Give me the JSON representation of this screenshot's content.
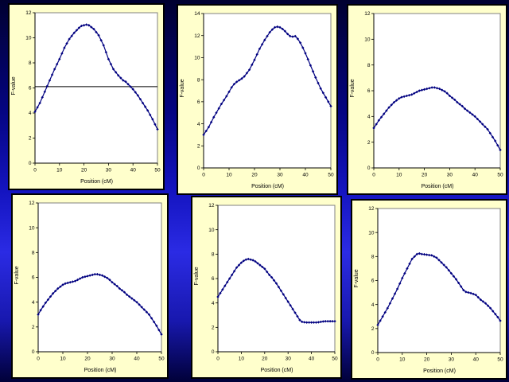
{
  "slide": {
    "type": "presentation-slide",
    "description": "Six line charts of F-value versus map position arranged in a 2x3 grid"
  },
  "colors": {
    "slide_bg_dark": "#000030",
    "slide_bg_bright": "#2b2be4",
    "panel_bg": "#FFFFCC",
    "panel_border": "#000000",
    "plot_bg": "#FFFFFF",
    "plot_frame": "#808080",
    "axis": "#000000",
    "series": "#000080",
    "threshold": "#000000"
  },
  "chart_data": [
    {
      "position": "top-left",
      "type": "line",
      "xlabel": "Position (cM)",
      "ylabel": "F-value",
      "xlim": [
        0,
        50
      ],
      "ylim": [
        0,
        12
      ],
      "xticks": [
        0,
        10,
        20,
        30,
        40,
        50
      ],
      "yticks": [
        0,
        2,
        4,
        6,
        8,
        10,
        12
      ],
      "x_start": 0,
      "x_step": 1,
      "threshold_line": 6.1,
      "marker": "diamond",
      "grid": false,
      "legend": false,
      "y": [
        4.1,
        4.45,
        4.8,
        5.25,
        5.7,
        6.15,
        6.6,
        7.05,
        7.5,
        7.9,
        8.3,
        8.75,
        9.2,
        9.55,
        9.9,
        10.15,
        10.4,
        10.6,
        10.8,
        10.95,
        11.0,
        11.05,
        11.0,
        10.85,
        10.7,
        10.45,
        10.2,
        9.8,
        9.4,
        8.85,
        8.3,
        7.9,
        7.5,
        7.25,
        7.0,
        6.8,
        6.6,
        6.5,
        6.3,
        6.1,
        5.9,
        5.65,
        5.4,
        5.1,
        4.8,
        4.5,
        4.2,
        3.85,
        3.5,
        3.1,
        2.7
      ]
    },
    {
      "position": "top-middle",
      "type": "line",
      "xlabel": "Position (cM)",
      "ylabel": "F-value",
      "xlim": [
        0,
        50
      ],
      "ylim": [
        0,
        14
      ],
      "xticks": [
        0,
        10,
        20,
        30,
        40,
        50
      ],
      "yticks": [
        0,
        2,
        4,
        6,
        8,
        10,
        12,
        14
      ],
      "x_start": 0,
      "x_step": 1,
      "threshold_line": null,
      "marker": "diamond",
      "grid": false,
      "legend": false,
      "y": [
        3.0,
        3.35,
        3.7,
        4.15,
        4.6,
        5.0,
        5.4,
        5.8,
        6.15,
        6.5,
        6.9,
        7.3,
        7.6,
        7.8,
        7.95,
        8.1,
        8.3,
        8.6,
        8.9,
        9.35,
        9.8,
        10.3,
        10.8,
        11.2,
        11.6,
        11.95,
        12.3,
        12.55,
        12.75,
        12.8,
        12.75,
        12.6,
        12.4,
        12.15,
        11.95,
        11.9,
        11.95,
        11.7,
        11.35,
        10.9,
        10.4,
        9.85,
        9.3,
        8.75,
        8.2,
        7.7,
        7.2,
        6.8,
        6.4,
        6.0,
        5.6
      ]
    },
    {
      "position": "top-right",
      "type": "line",
      "xlabel": "Position (cM)",
      "ylabel": "F-value",
      "xlim": [
        0,
        50
      ],
      "ylim": [
        0,
        12
      ],
      "xticks": [
        0,
        10,
        20,
        30,
        40,
        50
      ],
      "yticks": [
        0,
        2,
        4,
        6,
        8,
        10,
        12
      ],
      "x_start": 0,
      "x_step": 1,
      "threshold_line": null,
      "marker": "diamond",
      "grid": false,
      "legend": false,
      "y": [
        3.1,
        3.4,
        3.7,
        3.95,
        4.2,
        4.45,
        4.7,
        4.9,
        5.1,
        5.25,
        5.4,
        5.5,
        5.55,
        5.6,
        5.65,
        5.7,
        5.8,
        5.9,
        6.0,
        6.05,
        6.1,
        6.15,
        6.2,
        6.25,
        6.25,
        6.2,
        6.15,
        6.05,
        5.95,
        5.8,
        5.6,
        5.45,
        5.3,
        5.1,
        4.95,
        4.8,
        4.6,
        4.45,
        4.3,
        4.15,
        4.0,
        3.8,
        3.6,
        3.4,
        3.2,
        3.0,
        2.7,
        2.4,
        2.1,
        1.75,
        1.4
      ]
    },
    {
      "position": "bottom-left",
      "type": "line",
      "xlabel": "Position (cM)",
      "ylabel": "F-value",
      "xlim": [
        0,
        50
      ],
      "ylim": [
        0,
        12
      ],
      "xticks": [
        0,
        10,
        20,
        30,
        40,
        50
      ],
      "yticks": [
        0,
        2,
        4,
        6,
        8,
        10,
        12
      ],
      "x_start": 0,
      "x_step": 1,
      "threshold_line": null,
      "marker": "diamond",
      "grid": false,
      "legend": false,
      "y": [
        3.0,
        3.35,
        3.65,
        3.95,
        4.2,
        4.45,
        4.7,
        4.9,
        5.1,
        5.25,
        5.4,
        5.5,
        5.55,
        5.6,
        5.65,
        5.7,
        5.8,
        5.9,
        6.0,
        6.05,
        6.1,
        6.15,
        6.2,
        6.25,
        6.25,
        6.2,
        6.15,
        6.05,
        5.95,
        5.8,
        5.6,
        5.45,
        5.3,
        5.1,
        4.95,
        4.8,
        4.6,
        4.45,
        4.3,
        4.15,
        4.0,
        3.8,
        3.6,
        3.4,
        3.2,
        3.0,
        2.7,
        2.4,
        2.1,
        1.75,
        1.4
      ]
    },
    {
      "position": "bottom-middle",
      "type": "line",
      "xlabel": "Position (cM)",
      "ylabel": "F-value",
      "xlim": [
        0,
        50
      ],
      "ylim": [
        0,
        12
      ],
      "xticks": [
        0,
        10,
        20,
        30,
        40,
        50
      ],
      "yticks": [
        0,
        2,
        4,
        6,
        8,
        10,
        12
      ],
      "x_start": 0,
      "x_step": 1,
      "threshold_line": null,
      "marker": "diamond",
      "grid": false,
      "legend": false,
      "y": [
        4.5,
        4.8,
        5.1,
        5.4,
        5.7,
        6.0,
        6.3,
        6.6,
        6.9,
        7.1,
        7.3,
        7.45,
        7.55,
        7.6,
        7.55,
        7.5,
        7.4,
        7.25,
        7.1,
        6.95,
        6.8,
        6.55,
        6.3,
        6.1,
        5.85,
        5.6,
        5.3,
        5.0,
        4.7,
        4.4,
        4.1,
        3.8,
        3.5,
        3.2,
        2.9,
        2.6,
        2.45,
        2.42,
        2.4,
        2.4,
        2.4,
        2.4,
        2.4,
        2.42,
        2.45,
        2.48,
        2.5,
        2.5,
        2.5,
        2.5,
        2.5
      ]
    },
    {
      "position": "bottom-right",
      "type": "line",
      "xlabel": "Position (cM)",
      "ylabel": "F-value",
      "xlim": [
        0,
        50
      ],
      "ylim": [
        0,
        12
      ],
      "xticks": [
        0,
        10,
        20,
        30,
        40,
        50
      ],
      "yticks": [
        0,
        2,
        4,
        6,
        8,
        10,
        12
      ],
      "x_start": 0,
      "x_step": 1,
      "threshold_line": null,
      "marker": "diamond",
      "grid": false,
      "legend": false,
      "y": [
        2.3,
        2.65,
        3.0,
        3.35,
        3.7,
        4.1,
        4.5,
        4.9,
        5.3,
        5.75,
        6.2,
        6.6,
        7.0,
        7.4,
        7.8,
        8.0,
        8.2,
        8.25,
        8.2,
        8.18,
        8.15,
        8.12,
        8.1,
        8.0,
        7.9,
        7.7,
        7.5,
        7.3,
        7.1,
        6.85,
        6.6,
        6.35,
        6.1,
        5.8,
        5.5,
        5.2,
        5.05,
        5.0,
        4.95,
        4.88,
        4.8,
        4.6,
        4.4,
        4.25,
        4.1,
        3.9,
        3.7,
        3.45,
        3.2,
        2.95,
        2.65
      ]
    }
  ]
}
